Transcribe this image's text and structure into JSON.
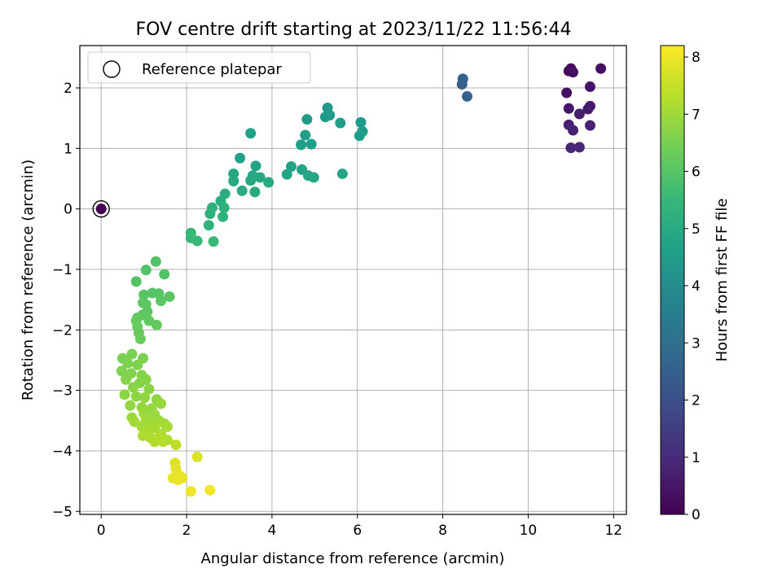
{
  "chart_data": {
    "type": "scatter",
    "title": "FOV centre drift starting at 2023/11/22 11:56:44",
    "xlabel": "Angular distance from reference (arcmin)",
    "ylabel": "Rotation from reference (arcmin)",
    "xlim": [
      -0.5,
      12.3
    ],
    "ylim": [
      -5.05,
      2.7
    ],
    "xticks": [
      0,
      2,
      4,
      6,
      8,
      10,
      12
    ],
    "yticks": [
      -5,
      -4,
      -3,
      -2,
      -1,
      0,
      1,
      2
    ],
    "grid": true,
    "legend": {
      "position": "top-left",
      "entries": [
        "Reference platepar"
      ]
    },
    "colorbar": {
      "label": "Hours from first FF file",
      "colormap": "viridis",
      "range": [
        0,
        8.2
      ],
      "ticks": [
        0,
        1,
        2,
        3,
        4,
        5,
        6,
        7,
        8
      ]
    },
    "reference_point": {
      "x": 0,
      "y": 0
    },
    "points": [
      {
        "x": 0.0,
        "y": 0.0,
        "t": 0.0
      },
      {
        "x": 10.95,
        "y": 2.28,
        "t": 0.2
      },
      {
        "x": 11.0,
        "y": 2.32,
        "t": 0.25
      },
      {
        "x": 11.05,
        "y": 2.26,
        "t": 0.3
      },
      {
        "x": 11.7,
        "y": 2.32,
        "t": 0.35
      },
      {
        "x": 10.9,
        "y": 1.92,
        "t": 0.4
      },
      {
        "x": 11.45,
        "y": 2.02,
        "t": 0.45
      },
      {
        "x": 10.95,
        "y": 1.66,
        "t": 0.5
      },
      {
        "x": 11.4,
        "y": 1.65,
        "t": 0.55
      },
      {
        "x": 11.45,
        "y": 1.7,
        "t": 0.6
      },
      {
        "x": 11.2,
        "y": 1.57,
        "t": 0.65
      },
      {
        "x": 10.95,
        "y": 1.39,
        "t": 0.7
      },
      {
        "x": 11.05,
        "y": 1.3,
        "t": 0.75
      },
      {
        "x": 11.45,
        "y": 1.38,
        "t": 0.8
      },
      {
        "x": 11.0,
        "y": 1.01,
        "t": 0.85
      },
      {
        "x": 11.2,
        "y": 1.02,
        "t": 0.9
      },
      {
        "x": 8.47,
        "y": 2.15,
        "t": 2.5
      },
      {
        "x": 8.45,
        "y": 2.06,
        "t": 2.55
      },
      {
        "x": 8.57,
        "y": 1.86,
        "t": 2.6
      },
      {
        "x": 5.3,
        "y": 1.67,
        "t": 4.4
      },
      {
        "x": 5.25,
        "y": 1.52,
        "t": 4.42
      },
      {
        "x": 5.35,
        "y": 1.55,
        "t": 4.44
      },
      {
        "x": 4.82,
        "y": 1.48,
        "t": 4.46
      },
      {
        "x": 5.6,
        "y": 1.42,
        "t": 4.48
      },
      {
        "x": 6.08,
        "y": 1.43,
        "t": 4.5
      },
      {
        "x": 6.12,
        "y": 1.28,
        "t": 4.52
      },
      {
        "x": 6.05,
        "y": 1.21,
        "t": 4.54
      },
      {
        "x": 4.78,
        "y": 1.22,
        "t": 4.56
      },
      {
        "x": 4.68,
        "y": 1.06,
        "t": 4.58
      },
      {
        "x": 4.92,
        "y": 1.07,
        "t": 4.6
      },
      {
        "x": 3.5,
        "y": 1.25,
        "t": 4.62
      },
      {
        "x": 3.25,
        "y": 0.84,
        "t": 4.7
      },
      {
        "x": 3.62,
        "y": 0.71,
        "t": 4.72
      },
      {
        "x": 4.45,
        "y": 0.7,
        "t": 4.74
      },
      {
        "x": 4.7,
        "y": 0.65,
        "t": 4.76
      },
      {
        "x": 4.35,
        "y": 0.57,
        "t": 4.78
      },
      {
        "x": 4.85,
        "y": 0.55,
        "t": 4.8
      },
      {
        "x": 4.98,
        "y": 0.52,
        "t": 4.82
      },
      {
        "x": 5.65,
        "y": 0.58,
        "t": 4.84
      },
      {
        "x": 3.1,
        "y": 0.58,
        "t": 4.86
      },
      {
        "x": 3.55,
        "y": 0.55,
        "t": 4.88
      },
      {
        "x": 3.72,
        "y": 0.52,
        "t": 4.9
      },
      {
        "x": 3.5,
        "y": 0.47,
        "t": 4.92
      },
      {
        "x": 3.1,
        "y": 0.46,
        "t": 4.94
      },
      {
        "x": 3.92,
        "y": 0.44,
        "t": 4.96
      },
      {
        "x": 3.3,
        "y": 0.3,
        "t": 4.98
      },
      {
        "x": 3.6,
        "y": 0.28,
        "t": 5.0
      },
      {
        "x": 2.9,
        "y": 0.25,
        "t": 5.1
      },
      {
        "x": 2.8,
        "y": 0.13,
        "t": 5.15
      },
      {
        "x": 2.6,
        "y": 0.02,
        "t": 5.2
      },
      {
        "x": 2.88,
        "y": 0.02,
        "t": 5.22
      },
      {
        "x": 2.55,
        "y": -0.08,
        "t": 5.25
      },
      {
        "x": 2.85,
        "y": -0.13,
        "t": 5.28
      },
      {
        "x": 2.52,
        "y": -0.27,
        "t": 5.3
      },
      {
        "x": 2.1,
        "y": -0.4,
        "t": 5.45
      },
      {
        "x": 2.1,
        "y": -0.48,
        "t": 5.5
      },
      {
        "x": 2.25,
        "y": -0.53,
        "t": 5.52
      },
      {
        "x": 2.63,
        "y": -0.54,
        "t": 5.55
      },
      {
        "x": 1.28,
        "y": -0.87,
        "t": 5.9
      },
      {
        "x": 1.05,
        "y": -1.01,
        "t": 5.92
      },
      {
        "x": 1.48,
        "y": -1.08,
        "t": 5.94
      },
      {
        "x": 0.82,
        "y": -1.2,
        "t": 5.96
      },
      {
        "x": 1.2,
        "y": -1.39,
        "t": 5.98
      },
      {
        "x": 1.35,
        "y": -1.4,
        "t": 6.0
      },
      {
        "x": 1.0,
        "y": -1.42,
        "t": 6.02
      },
      {
        "x": 1.6,
        "y": -1.45,
        "t": 6.04
      },
      {
        "x": 1.4,
        "y": -1.52,
        "t": 6.06
      },
      {
        "x": 0.98,
        "y": -1.55,
        "t": 6.08
      },
      {
        "x": 1.05,
        "y": -1.58,
        "t": 6.1
      },
      {
        "x": 1.08,
        "y": -1.7,
        "t": 6.12
      },
      {
        "x": 0.97,
        "y": -1.75,
        "t": 6.14
      },
      {
        "x": 0.85,
        "y": -1.8,
        "t": 6.16
      },
      {
        "x": 1.12,
        "y": -1.85,
        "t": 6.18
      },
      {
        "x": 0.82,
        "y": -1.85,
        "t": 6.2
      },
      {
        "x": 1.3,
        "y": -1.92,
        "t": 6.22
      },
      {
        "x": 0.85,
        "y": -1.95,
        "t": 6.24
      },
      {
        "x": 0.88,
        "y": -2.05,
        "t": 6.26
      },
      {
        "x": 0.92,
        "y": -2.15,
        "t": 6.28
      },
      {
        "x": 0.5,
        "y": -2.47,
        "t": 6.5
      },
      {
        "x": 0.72,
        "y": -2.4,
        "t": 6.52
      },
      {
        "x": 0.98,
        "y": -2.47,
        "t": 6.54
      },
      {
        "x": 0.62,
        "y": -2.55,
        "t": 6.56
      },
      {
        "x": 0.85,
        "y": -2.58,
        "t": 6.58
      },
      {
        "x": 0.48,
        "y": -2.68,
        "t": 6.6
      },
      {
        "x": 0.7,
        "y": -2.72,
        "t": 6.62
      },
      {
        "x": 0.95,
        "y": -2.75,
        "t": 6.64
      },
      {
        "x": 0.58,
        "y": -2.82,
        "t": 6.66
      },
      {
        "x": 0.9,
        "y": -2.88,
        "t": 6.68
      },
      {
        "x": 1.05,
        "y": -2.82,
        "t": 6.7
      },
      {
        "x": 0.75,
        "y": -2.95,
        "t": 6.72
      },
      {
        "x": 1.12,
        "y": -2.98,
        "t": 6.74
      },
      {
        "x": 0.55,
        "y": -3.07,
        "t": 6.76
      },
      {
        "x": 0.82,
        "y": -3.1,
        "t": 6.78
      },
      {
        "x": 1.02,
        "y": -3.12,
        "t": 6.8
      },
      {
        "x": 1.3,
        "y": -3.15,
        "t": 6.82
      },
      {
        "x": 0.68,
        "y": -3.25,
        "t": 6.84
      },
      {
        "x": 0.95,
        "y": -3.28,
        "t": 6.86
      },
      {
        "x": 1.18,
        "y": -3.3,
        "t": 6.88
      },
      {
        "x": 1.4,
        "y": -3.22,
        "t": 6.9
      },
      {
        "x": 1.0,
        "y": -3.38,
        "t": 6.92
      },
      {
        "x": 1.25,
        "y": -3.4,
        "t": 6.94
      },
      {
        "x": 0.72,
        "y": -3.45,
        "t": 6.96
      },
      {
        "x": 1.05,
        "y": -3.48,
        "t": 6.98
      },
      {
        "x": 1.35,
        "y": -3.5,
        "t": 7.0
      },
      {
        "x": 0.78,
        "y": -3.52,
        "t": 7.02
      },
      {
        "x": 1.15,
        "y": -3.55,
        "t": 7.04
      },
      {
        "x": 1.48,
        "y": -3.55,
        "t": 7.06
      },
      {
        "x": 0.95,
        "y": -3.6,
        "t": 7.08
      },
      {
        "x": 1.25,
        "y": -3.62,
        "t": 7.1
      },
      {
        "x": 1.55,
        "y": -3.6,
        "t": 7.12
      },
      {
        "x": 1.08,
        "y": -3.7,
        "t": 7.14
      },
      {
        "x": 1.4,
        "y": -3.72,
        "t": 7.16
      },
      {
        "x": 0.98,
        "y": -3.75,
        "t": 7.18
      },
      {
        "x": 1.15,
        "y": -3.78,
        "t": 7.2
      },
      {
        "x": 1.35,
        "y": -3.78,
        "t": 7.22
      },
      {
        "x": 1.55,
        "y": -3.82,
        "t": 7.24
      },
      {
        "x": 1.25,
        "y": -3.85,
        "t": 7.26
      },
      {
        "x": 1.45,
        "y": -3.85,
        "t": 7.28
      },
      {
        "x": 1.75,
        "y": -3.9,
        "t": 7.4
      },
      {
        "x": 2.25,
        "y": -4.1,
        "t": 7.8
      },
      {
        "x": 1.73,
        "y": -4.2,
        "t": 7.82
      },
      {
        "x": 1.75,
        "y": -4.3,
        "t": 7.84
      },
      {
        "x": 1.78,
        "y": -4.38,
        "t": 7.86
      },
      {
        "x": 1.85,
        "y": -4.42,
        "t": 7.88
      },
      {
        "x": 1.68,
        "y": -4.45,
        "t": 7.9
      },
      {
        "x": 1.9,
        "y": -4.45,
        "t": 7.92
      },
      {
        "x": 1.8,
        "y": -4.48,
        "t": 7.94
      },
      {
        "x": 2.1,
        "y": -4.67,
        "t": 8.0
      },
      {
        "x": 2.55,
        "y": -4.65,
        "t": 8.05
      }
    ]
  }
}
